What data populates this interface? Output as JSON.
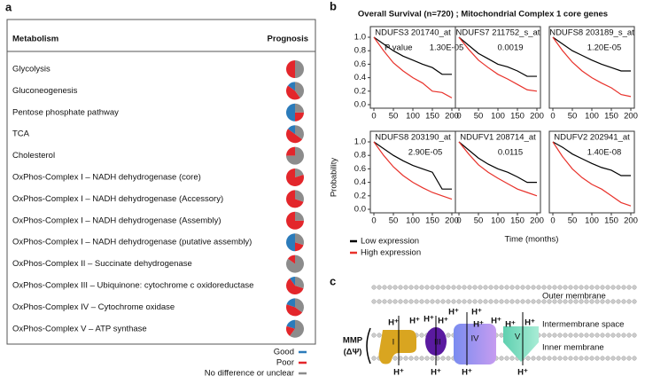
{
  "panel_a": {
    "label": "a",
    "header": [
      "Metabolism",
      "Prognosis"
    ],
    "rows": [
      {
        "name": "Glycolysis",
        "pie": [
          0,
          50,
          50
        ]
      },
      {
        "name": "Gluconeogenesis",
        "pie": [
          15,
          45,
          40
        ]
      },
      {
        "name": "Pentose phosphate pathway",
        "pie": [
          50,
          25,
          25
        ]
      },
      {
        "name": "TCA",
        "pie": [
          15,
          50,
          35
        ]
      },
      {
        "name": "Cholesterol",
        "pie": [
          0,
          25,
          75
        ]
      },
      {
        "name": "OxPhos-Complex I – NADH dehydrogenase (core)",
        "pie": [
          0,
          80,
          20
        ]
      },
      {
        "name": "OxPhos-Complex I – NADH dehydrogenase (Accessory)",
        "pie": [
          0,
          70,
          30
        ]
      },
      {
        "name": "OxPhos-Complex I – NADH dehydrogenase (Assembly)",
        "pie": [
          0,
          75,
          25
        ]
      },
      {
        "name": "OxPhos-Complex I – NADH dehydrogenase (putative assembly)",
        "pie": [
          50,
          20,
          30
        ]
      },
      {
        "name": "OxPhos-Complex II – Succinate dehydrogenase",
        "pie": [
          0,
          15,
          85
        ]
      },
      {
        "name": "OxPhos-Complex III – Ubiquinone: cytochrome c oxidoreductase",
        "pie": [
          10,
          60,
          30
        ]
      },
      {
        "name": "OxPhos-Complex IV – Cytochrome oxidase",
        "pie": [
          20,
          45,
          35
        ]
      },
      {
        "name": "OxPhos-Complex V – ATP synthase",
        "pie": [
          20,
          20,
          60
        ]
      }
    ],
    "legend": [
      {
        "label": "Good",
        "color": "#2b7bba"
      },
      {
        "label": "Poor",
        "color": "#e3262b"
      },
      {
        "label": "No difference or unclear",
        "color": "#8c8c8c"
      }
    ]
  },
  "panel_b": {
    "label": "b",
    "title": "Overall Survival (n=720) ; Mitochondrial Complex 1 core genes",
    "y_label": "Probability",
    "x_label": "Time (months)",
    "xlim": [
      0,
      200
    ],
    "xticks": [
      0,
      50,
      100,
      150,
      200
    ],
    "ylim": [
      0,
      1
    ],
    "yticks": [
      {
        "value": 0,
        "label": "0.0"
      },
      {
        "value": 0.2,
        "label": "0.2"
      },
      {
        "value": 0.4,
        "label": "0.4"
      },
      {
        "value": 0.6,
        "label": "0.6"
      },
      {
        "value": 0.8,
        "label": "0.8"
      },
      {
        "value": 1,
        "label": "1.0"
      }
    ],
    "series": [
      {
        "name": "Low expression",
        "color": "#000000"
      },
      {
        "name": "High expression",
        "color": "#e8322b"
      }
    ],
    "panels": [
      {
        "title": "NDUFS3  201740_at",
        "pvalue_prefix": "P value",
        "pvalue": "1.30E-05",
        "curves": [
          {
            "x": [
              0,
              25,
              50,
              75,
              100,
              125,
              150,
              175,
              200
            ],
            "values": [
              1,
              0.9,
              0.8,
              0.72,
              0.66,
              0.6,
              0.55,
              0.45,
              0.45
            ]
          },
          {
            "x": [
              0,
              25,
              50,
              75,
              100,
              125,
              150,
              175,
              200
            ],
            "values": [
              1,
              0.8,
              0.62,
              0.5,
              0.4,
              0.32,
              0.2,
              0.18,
              0.1
            ]
          }
        ]
      },
      {
        "title": "NDUFS7  211752_s_at",
        "pvalue": "0.0019",
        "curves": [
          {
            "x": [
              0,
              25,
              50,
              75,
              100,
              125,
              150,
              175,
              200
            ],
            "values": [
              1,
              0.88,
              0.76,
              0.68,
              0.6,
              0.56,
              0.5,
              0.42,
              0.42
            ]
          },
          {
            "x": [
              0,
              25,
              50,
              75,
              100,
              125,
              150,
              175,
              200
            ],
            "values": [
              1,
              0.82,
              0.66,
              0.55,
              0.45,
              0.38,
              0.3,
              0.22,
              0.2
            ]
          }
        ]
      },
      {
        "title": "NDUFS8  203189_s_at",
        "pvalue": "1.20E-05",
        "curves": [
          {
            "x": [
              0,
              25,
              50,
              75,
              100,
              125,
              150,
              175,
              200
            ],
            "values": [
              1,
              0.9,
              0.8,
              0.73,
              0.66,
              0.6,
              0.55,
              0.5,
              0.5
            ]
          },
          {
            "x": [
              0,
              25,
              50,
              75,
              100,
              125,
              150,
              175,
              200
            ],
            "values": [
              1,
              0.8,
              0.63,
              0.5,
              0.4,
              0.32,
              0.25,
              0.15,
              0.12
            ]
          }
        ]
      },
      {
        "title": "NDUFS8  203190_at",
        "pvalue": "2.90E-05",
        "curves": [
          {
            "x": [
              0,
              25,
              50,
              75,
              100,
              125,
              150,
              175,
              200
            ],
            "values": [
              1,
              0.9,
              0.8,
              0.72,
              0.65,
              0.6,
              0.55,
              0.3,
              0.3
            ]
          },
          {
            "x": [
              0,
              25,
              50,
              75,
              100,
              125,
              150,
              175,
              200
            ],
            "values": [
              1,
              0.8,
              0.63,
              0.5,
              0.4,
              0.32,
              0.25,
              0.2,
              0.15
            ]
          }
        ]
      },
      {
        "title": "NDUFV1  208714_at",
        "pvalue": "0.0115",
        "curves": [
          {
            "x": [
              0,
              25,
              50,
              75,
              100,
              125,
              150,
              175,
              200
            ],
            "values": [
              1,
              0.88,
              0.76,
              0.67,
              0.6,
              0.55,
              0.48,
              0.4,
              0.4
            ]
          },
          {
            "x": [
              0,
              25,
              50,
              75,
              100,
              125,
              150,
              175,
              200
            ],
            "values": [
              1,
              0.82,
              0.66,
              0.55,
              0.46,
              0.38,
              0.3,
              0.25,
              0.2
            ]
          }
        ]
      },
      {
        "title": "NDUFV2  202941_at",
        "pvalue": "1.40E-08",
        "curves": [
          {
            "x": [
              0,
              25,
              50,
              75,
              100,
              125,
              150,
              175,
              200
            ],
            "values": [
              1,
              0.92,
              0.82,
              0.75,
              0.68,
              0.62,
              0.58,
              0.5,
              0.5
            ]
          },
          {
            "x": [
              0,
              25,
              50,
              75,
              100,
              125,
              150,
              175,
              200
            ],
            "values": [
              1,
              0.78,
              0.6,
              0.47,
              0.37,
              0.3,
              0.2,
              0.1,
              0.05
            ]
          }
        ]
      }
    ]
  },
  "panel_c": {
    "label": "c",
    "outer": "Outer membrane",
    "intermembrane": "Intermembrane space",
    "inner": "Inner membrane",
    "mmp": "MMP",
    "delta": "(ΔΨ)",
    "proton": "H⁺",
    "complexes": [
      "I",
      "III",
      "IV",
      "V"
    ]
  }
}
